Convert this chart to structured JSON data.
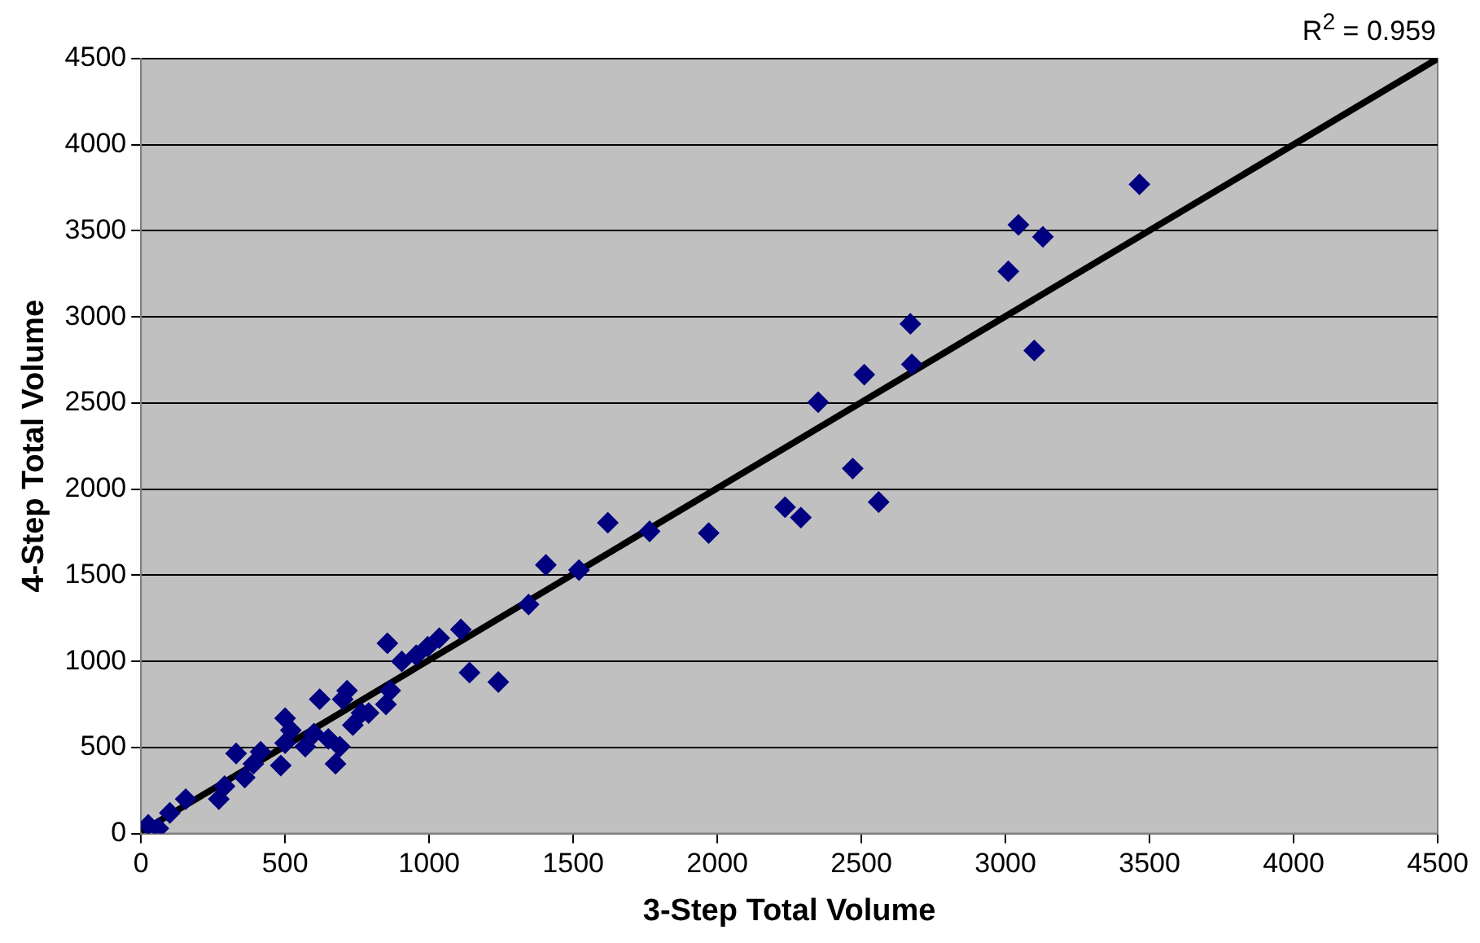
{
  "chart_data": {
    "type": "scatter",
    "xlabel": "3-Step Total Volume",
    "ylabel": "4-Step Total Volume",
    "annotations": [
      "R$^{2}$ = 0.959"
    ],
    "xlim": [
      0,
      4500
    ],
    "xticks": [
      0,
      500,
      1000,
      1500,
      2000,
      2500,
      3000,
      3500,
      4000,
      4500
    ],
    "ylim": [
      0,
      4500
    ],
    "yticks": [
      0,
      500,
      1000,
      1500,
      2000,
      2500,
      3000,
      3500,
      4000,
      4500
    ],
    "grid": "y",
    "legend": false,
    "marker": "diamond",
    "series": [
      {
        "color": "#000080",
        "x": [
          25,
          60,
          100,
          155,
          270,
          290,
          330,
          360,
          390,
          415,
          485,
          500,
          500,
          520,
          570,
          600,
          620,
          650,
          675,
          690,
          700,
          715,
          735,
          765,
          790,
          850,
          865,
          855,
          905,
          955,
          995,
          1035,
          1110,
          1140,
          1240,
          1345,
          1405,
          1520,
          1620,
          1765,
          1970,
          2235,
          2290,
          2350,
          2470,
          2510,
          2560,
          2670,
          2675,
          3010,
          3045,
          3100,
          3130,
          3465
        ],
        "values": [
          50,
          30,
          120,
          200,
          200,
          275,
          465,
          325,
          405,
          475,
          395,
          525,
          670,
          600,
          505,
          580,
          780,
          550,
          405,
          505,
          780,
          830,
          630,
          700,
          700,
          750,
          830,
          1105,
          1000,
          1035,
          1085,
          1135,
          1185,
          935,
          880,
          1330,
          1560,
          1530,
          1805,
          1755,
          1745,
          1895,
          1835,
          2505,
          2120,
          2665,
          1925,
          2960,
          2725,
          3265,
          3535,
          2805,
          3465,
          3770
        ]
      },
      {
        "type": "line",
        "color": "#000000",
        "x": [
          0,
          4500
        ],
        "values": [
          10,
          4500
        ],
        "marker": "none"
      }
    ]
  }
}
